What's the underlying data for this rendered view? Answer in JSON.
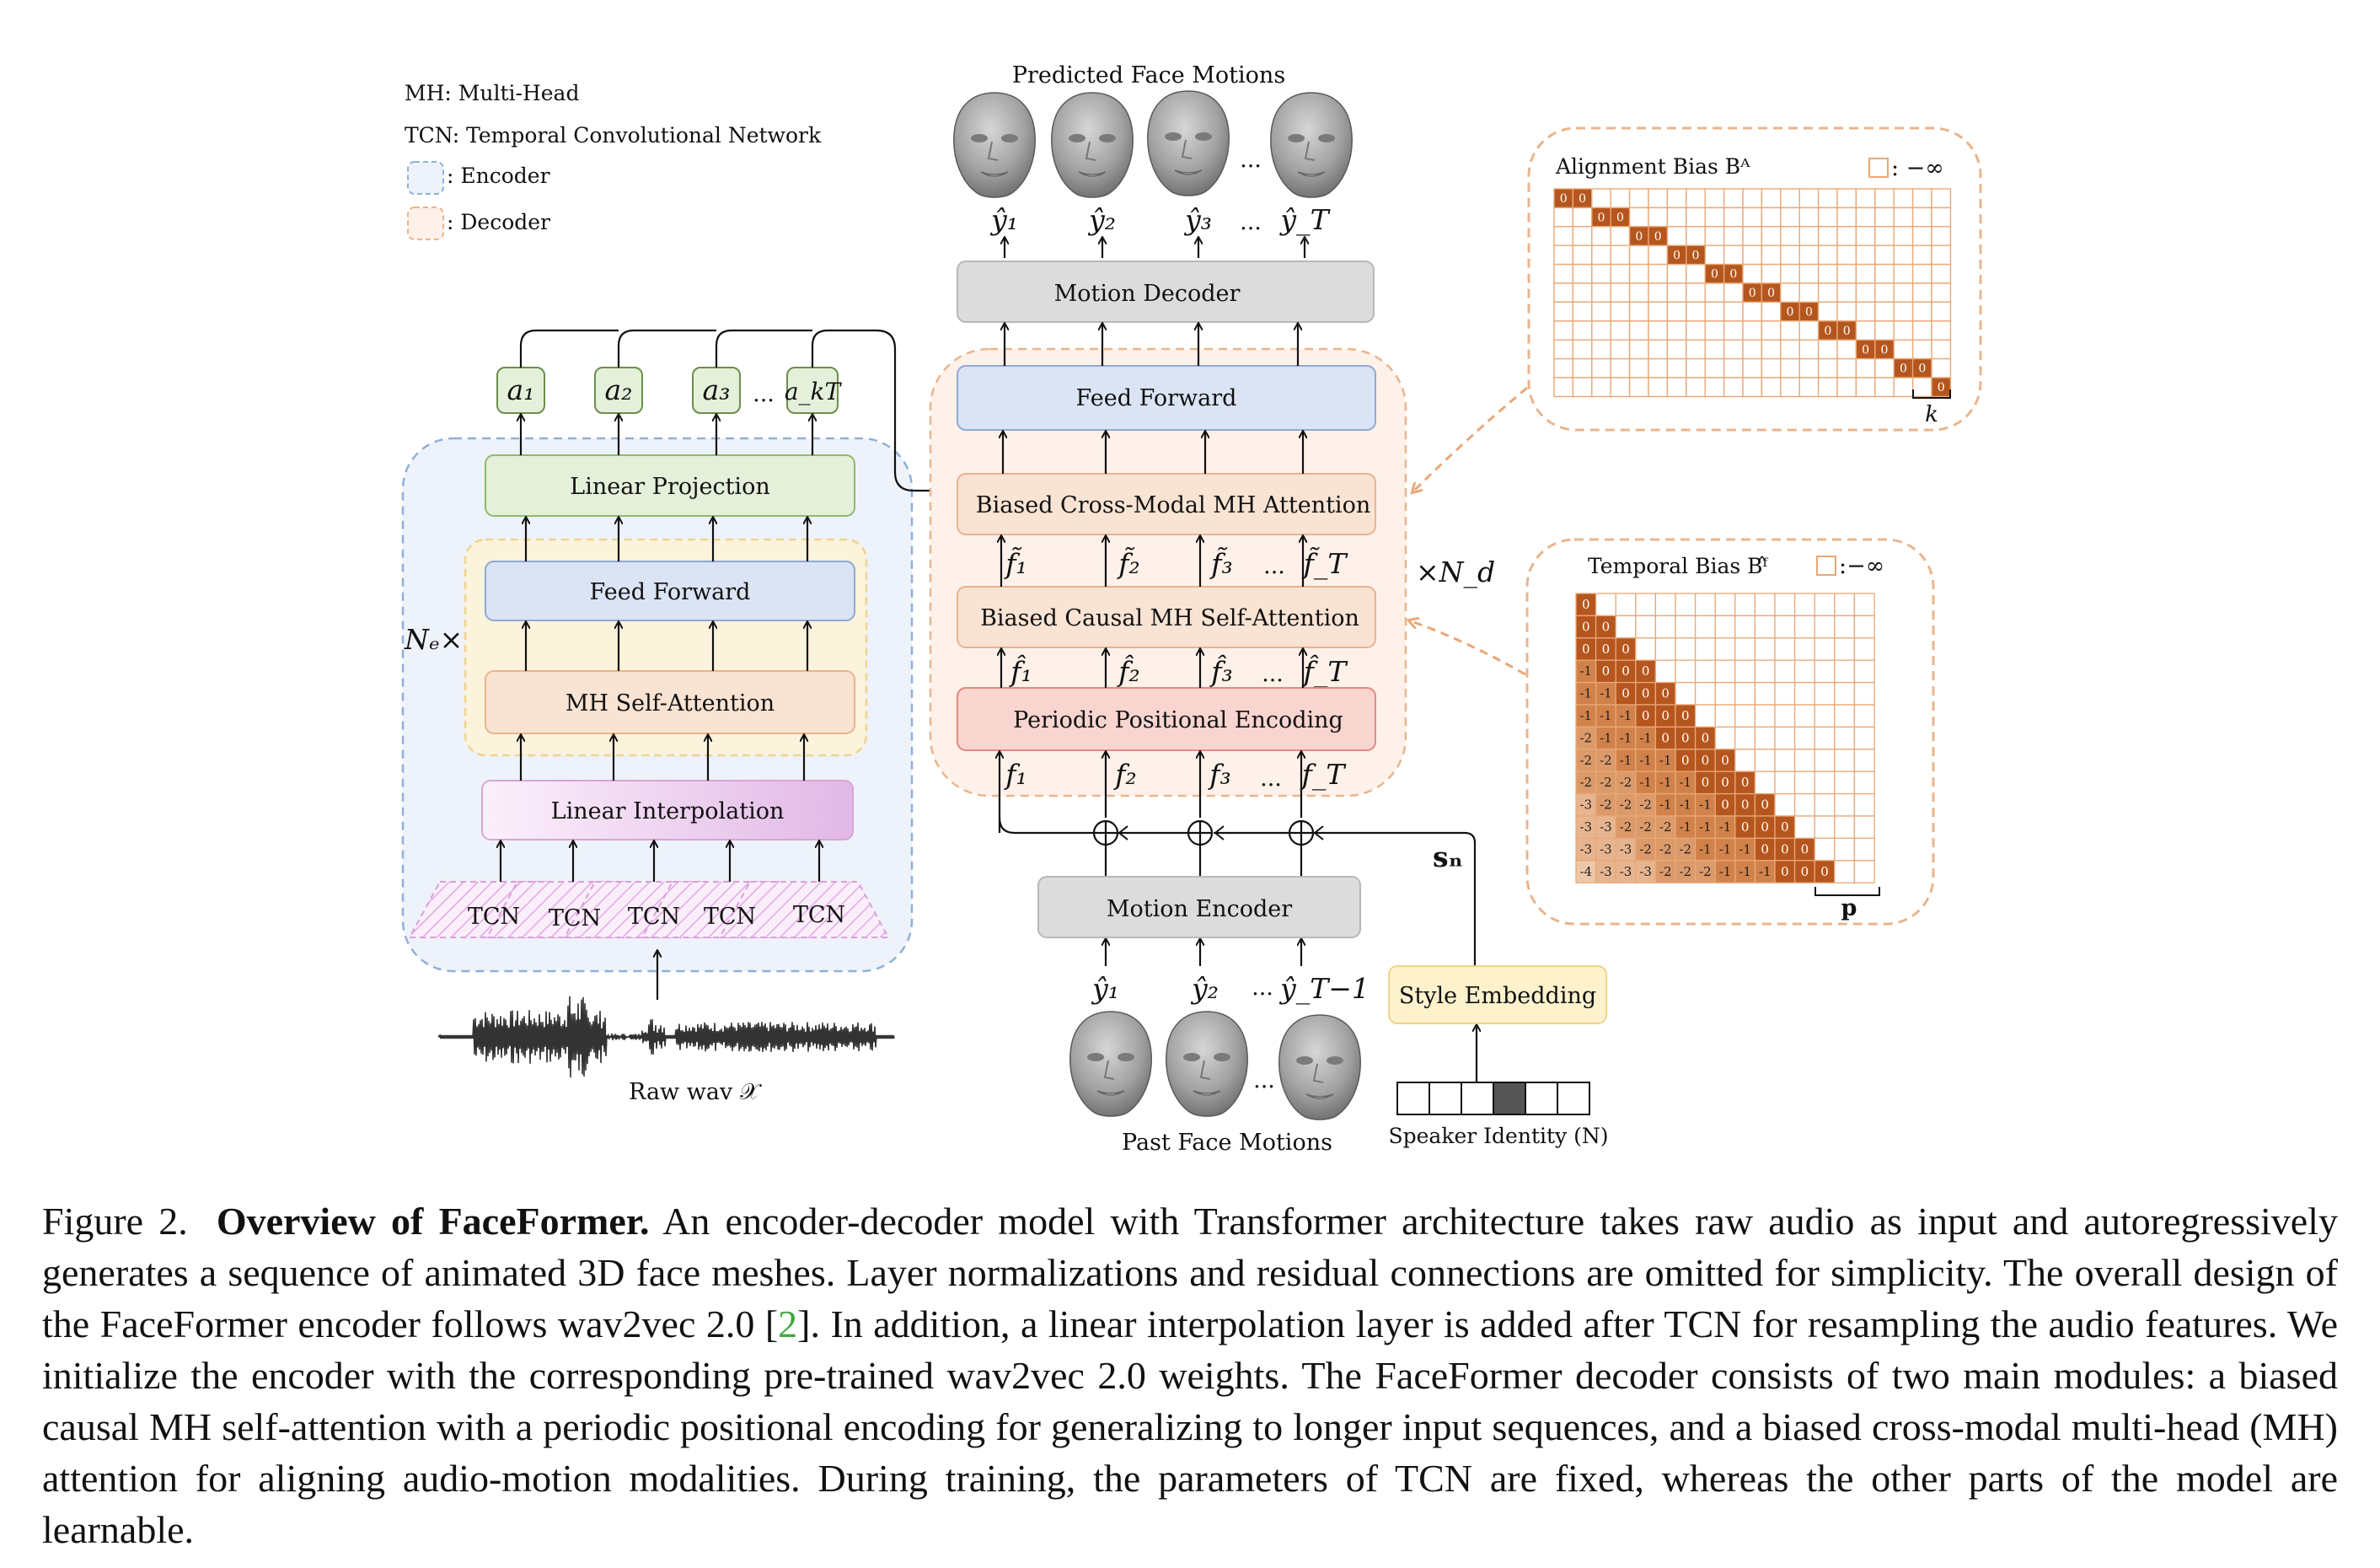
{
  "legend": {
    "mh": "MH:   Multi-Head",
    "tcn": "TCN:  Temporal Convolutional Network",
    "encoder": ":  Encoder",
    "decoder": ":  Decoder"
  },
  "encoder": {
    "outputs": [
      "a₁",
      "a₂",
      "a₃",
      "a_kT"
    ],
    "ellipsis": "...",
    "linear_projection": "Linear Projection",
    "feed_forward": "Feed Forward",
    "mh_self_attention": "MH Self-Attention",
    "linear_interpolation": "Linear Interpolation",
    "tcn_blocks": [
      "TCN",
      "TCN",
      "TCN",
      "TCN",
      "TCN"
    ],
    "repeat": "Nₑ×",
    "input_label": "Raw wav 𝒳"
  },
  "decoder": {
    "predicted_label": "Predicted Face Motions",
    "predicted_outputs": [
      "ŷ₁",
      "ŷ₂",
      "ŷ₃",
      "ŷ_T"
    ],
    "motion_decoder": "Motion Decoder",
    "feed_forward": "Feed Forward",
    "cross_attention": "Biased Cross-Modal MH Attention",
    "tilde_features": [
      "f̃₁",
      "f̃₂",
      "f̃₃",
      "f̃_T"
    ],
    "causal_attention": "Biased Causal MH Self-Attention",
    "hat_features": [
      "f̂₁",
      "f̂₂",
      "f̂₃",
      "f̂_T"
    ],
    "ppe": "Periodic Positional Encoding",
    "features": [
      "f₁",
      "f₂",
      "f₃",
      "f_T"
    ],
    "repeat": "×N_d",
    "motion_encoder": "Motion Encoder",
    "past_inputs": [
      "ŷ₁",
      "ŷ₂",
      "ŷ_T−1"
    ],
    "past_label": "Past Face Motions",
    "style_embedding": "Style Embedding",
    "style_vector": "sₙ",
    "speaker_label": "Speaker Identity (N)",
    "ellipsis": "..."
  },
  "alignment": {
    "title": "Alignment Bias Bᴬ",
    "neg_inf": ": −∞",
    "k": "k",
    "cell_value": "0"
  },
  "temporal": {
    "title": "Temporal Bias Bᶠ̂",
    "neg_inf": ":−∞",
    "p": "p",
    "matrix_values": [
      [
        "0"
      ],
      [
        "0",
        "0"
      ],
      [
        "0",
        "0",
        "0"
      ],
      [
        "-1",
        "0",
        "0",
        "0"
      ],
      [
        "-1",
        "-1",
        "0",
        "0",
        "0"
      ],
      [
        "-1",
        "-1",
        "-1",
        "0",
        "0",
        "0"
      ],
      [
        "-2",
        "-1",
        "-1",
        "-1",
        "0",
        "0",
        "0"
      ],
      [
        "-2",
        "-2",
        "-1",
        "-1",
        "-1",
        "0",
        "0",
        "0"
      ],
      [
        "-2",
        "-2",
        "-2",
        "-1",
        "-1",
        "-1",
        "0",
        "0",
        "0"
      ],
      [
        "-3",
        "-2",
        "-2",
        "-2",
        "-1",
        "-1",
        "-1",
        "0",
        "0",
        "0"
      ],
      [
        "-3",
        "-3",
        "-2",
        "-2",
        "-2",
        "-1",
        "-1",
        "-1",
        "0",
        "0",
        "0"
      ],
      [
        "-3",
        "-3",
        "-3",
        "-2",
        "-2",
        "-2",
        "-1",
        "-1",
        "-1",
        "0",
        "0",
        "0"
      ],
      [
        "-4",
        "-3",
        "-3",
        "-3",
        "-2",
        "-2",
        "-2",
        "-1",
        "-1",
        "-1",
        "0",
        "0",
        "0"
      ]
    ]
  },
  "colors": {
    "encoder_region": "#eef2fa",
    "decoder_region": "#fdf1e9",
    "inner_region": "#fcf3dc",
    "linear_projection": "#e4f0da",
    "feed_forward": "#dbe4f4",
    "self_attention": "#f9e3d3",
    "interpolation": "#f0d6f0",
    "ppe": "#f9d5d0",
    "gray_block": "#dcdcdc",
    "style_embedding": "#fdf2cc",
    "matrix_zero": "#b5561e",
    "dashed_orange": "#e9b58d"
  },
  "caption": {
    "fig_num": "Figure 2.",
    "title": "Overview of FaceFormer.",
    "text_1": " An encoder-decoder model with Transformer architecture takes raw audio as input and autoregressively generates a sequence of animated 3D face meshes. Layer normalizations and residual connections are omitted for simplicity. The overall design of the FaceFormer encoder follows wav2vec 2.0 [",
    "ref": "2",
    "text_2": "]. In addition, a linear interpolation layer is added after TCN for resampling the audio features. We initialize the encoder with the corresponding pre-trained wav2vec 2.0 weights. The FaceFormer decoder consists of two main modules: a biased causal MH self-attention with a periodic positional encoding for generalizing to longer input sequences, and a biased cross-modal multi-head (MH) attention for aligning audio-motion modalities. During training, the parameters of TCN are fixed, whereas the other parts of the model are learnable."
  }
}
